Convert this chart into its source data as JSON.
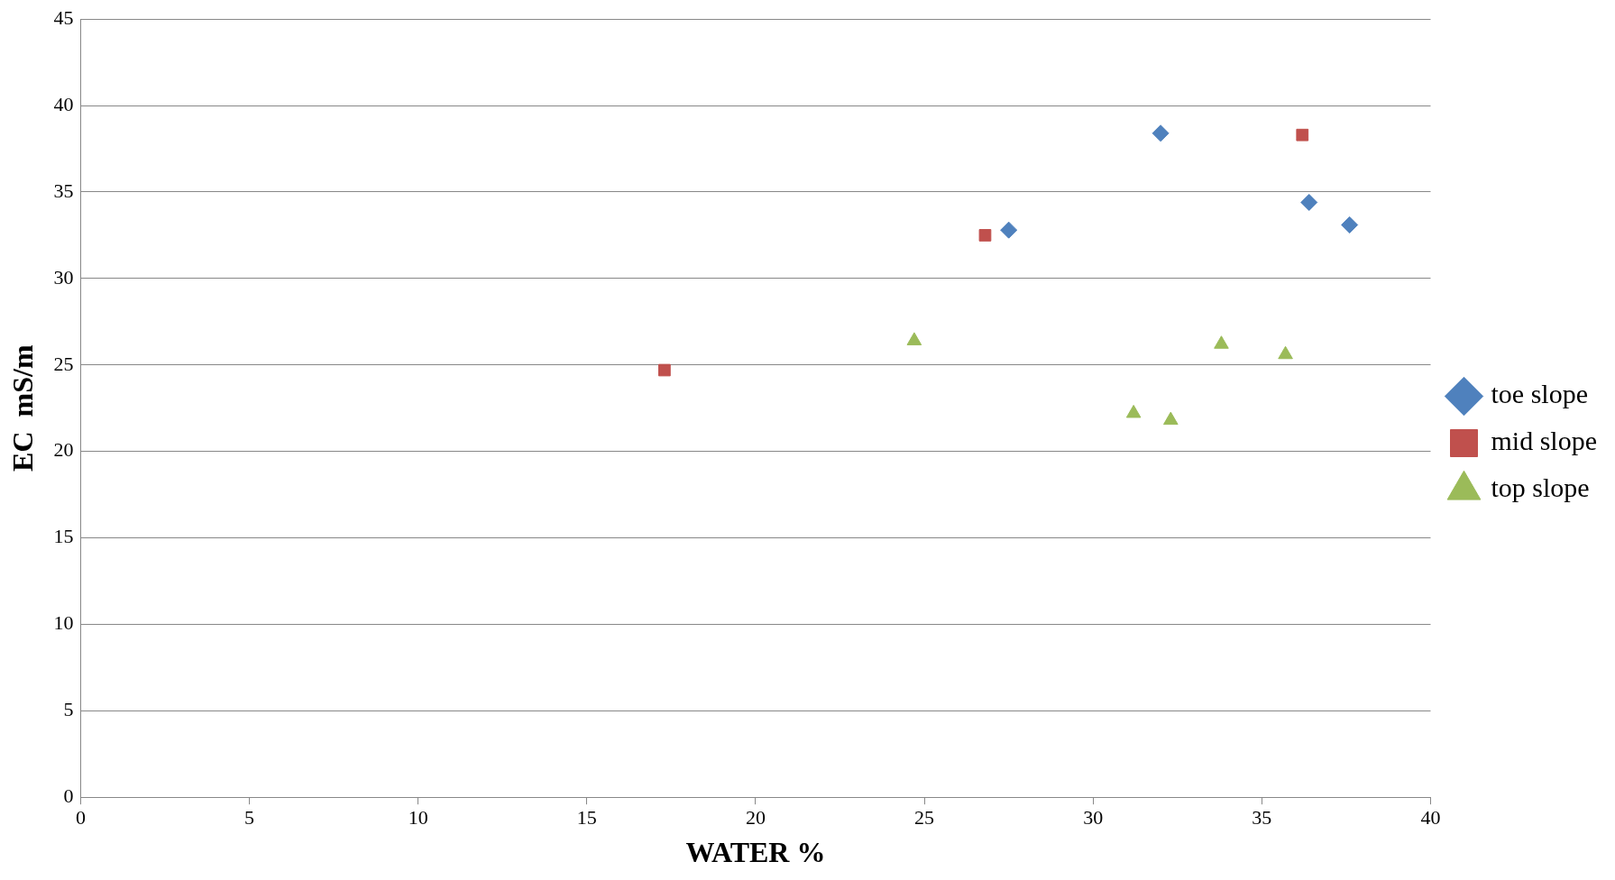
{
  "chart_data": {
    "type": "scatter",
    "xlabel": "WATER %",
    "ylabel": "EC  mS/m",
    "xlim": [
      0,
      40
    ],
    "xticks": [
      0,
      5,
      10,
      15,
      20,
      25,
      30,
      35,
      40
    ],
    "ylim": [
      0,
      45
    ],
    "yticks": [
      0,
      5,
      10,
      15,
      20,
      25,
      30,
      35,
      40,
      45
    ],
    "grid": "y",
    "legend": "right",
    "series": [
      {
        "name": "toe slope",
        "color": "#4f81bd",
        "marker": "diamond",
        "x": [
          32.0,
          27.5,
          36.4,
          37.6
        ],
        "values": [
          38.4,
          32.8,
          34.4,
          33.1
        ]
      },
      {
        "name": "mid slope",
        "color": "#c0504d",
        "marker": "square",
        "x": [
          17.3,
          26.8,
          36.2
        ],
        "values": [
          24.7,
          32.5,
          38.3
        ]
      },
      {
        "name": "top slope",
        "color": "#9bbb59",
        "marker": "triangle",
        "x": [
          24.7,
          31.2,
          32.3,
          33.8,
          35.7
        ],
        "values": [
          26.4,
          22.2,
          21.8,
          26.2,
          25.6
        ]
      }
    ]
  }
}
